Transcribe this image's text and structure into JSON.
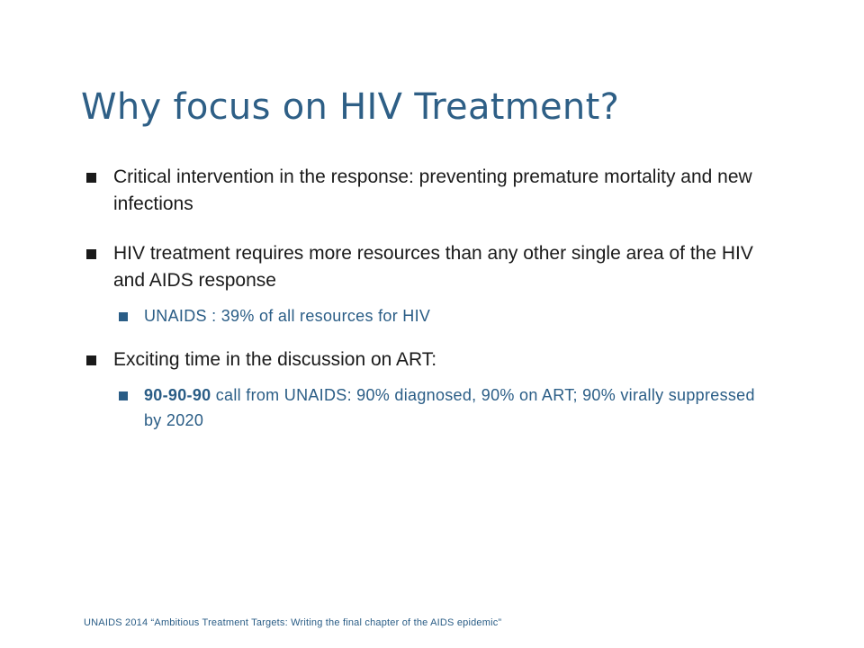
{
  "slide": {
    "title": "Why focus on HIV Treatment?",
    "bullets": [
      {
        "text": "Critical intervention in the response: preventing premature mortality and new infections"
      },
      {
        "text": "HIV treatment requires more resources than any other single area of the HIV and AIDS response",
        "subs": [
          {
            "text": "UNAIDS : 39% of all resources for HIV"
          }
        ]
      },
      {
        "text": "Exciting time in the discussion on ART:",
        "subs": [
          {
            "bold": "90-90-90",
            "text": " call from UNAIDS: 90% diagnosed, 90% on ART; 90% virally suppressed by 2020"
          }
        ]
      }
    ],
    "footer": "UNAIDS 2014 “Ambitious Treatment Targets: Writing the final chapter of the AIDS epidemic”"
  },
  "colors": {
    "title": "#2e5f86",
    "body_text": "#1a1a1a",
    "sub_text": "#2a5d86"
  }
}
